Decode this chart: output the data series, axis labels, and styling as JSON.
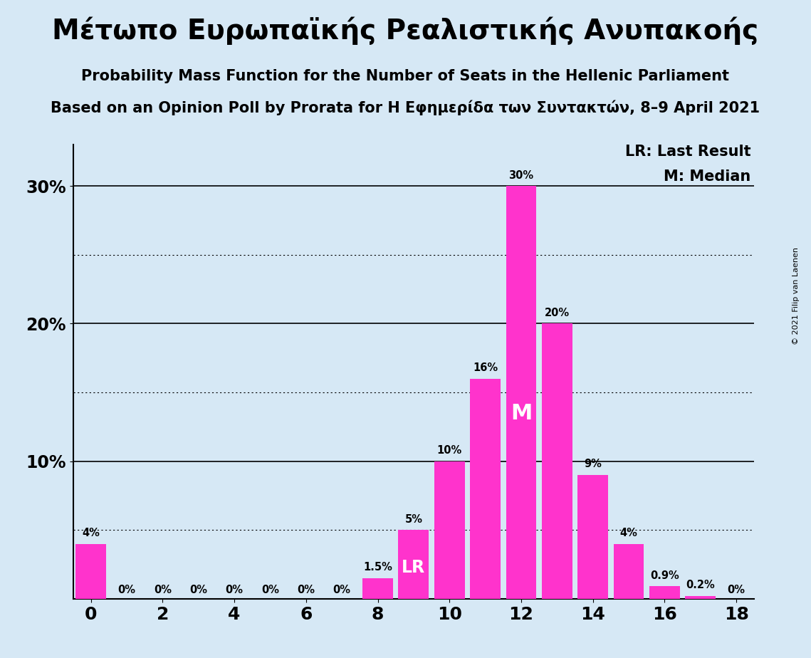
{
  "title_greek": "Μέτωπο Ευρωπαϊκής Ρεαλιστικής Ανυπακοής",
  "subtitle1": "Probability Mass Function for the Number of Seats in the Hellenic Parliament",
  "subtitle2": "Based on an Opinion Poll by Prorata for Η Εφημερίδα των Συντακτών, 8–9 April 2021",
  "copyright": "© 2021 Filip van Laenen",
  "categories": [
    0,
    1,
    2,
    3,
    4,
    5,
    6,
    7,
    8,
    9,
    10,
    11,
    12,
    13,
    14,
    15,
    16,
    17,
    18
  ],
  "values": [
    4,
    0,
    0,
    0,
    0,
    0,
    0,
    0,
    1.5,
    5,
    10,
    16,
    30,
    20,
    9,
    4,
    0.9,
    0.2,
    0
  ],
  "bar_color": "#FF33CC",
  "background_color": "#d6e8f5",
  "text_color": "#000000",
  "label_texts": [
    "4%",
    "0%",
    "0%",
    "0%",
    "0%",
    "0%",
    "0%",
    "0%",
    "1.5%",
    "5%",
    "10%",
    "16%",
    "30%",
    "20%",
    "9%",
    "4%",
    "0.9%",
    "0.2%",
    "0%"
  ],
  "lr_bar": 9,
  "median_bar": 12,
  "lr_label": "LR",
  "median_label": "M",
  "legend_lr": "LR: Last Result",
  "legend_m": "M: Median",
  "solid_yticks": [
    10,
    20,
    30
  ],
  "dotted_yticks": [
    5,
    15,
    25
  ],
  "ylim": [
    0,
    33
  ],
  "xlim": [
    -0.5,
    18.5
  ]
}
